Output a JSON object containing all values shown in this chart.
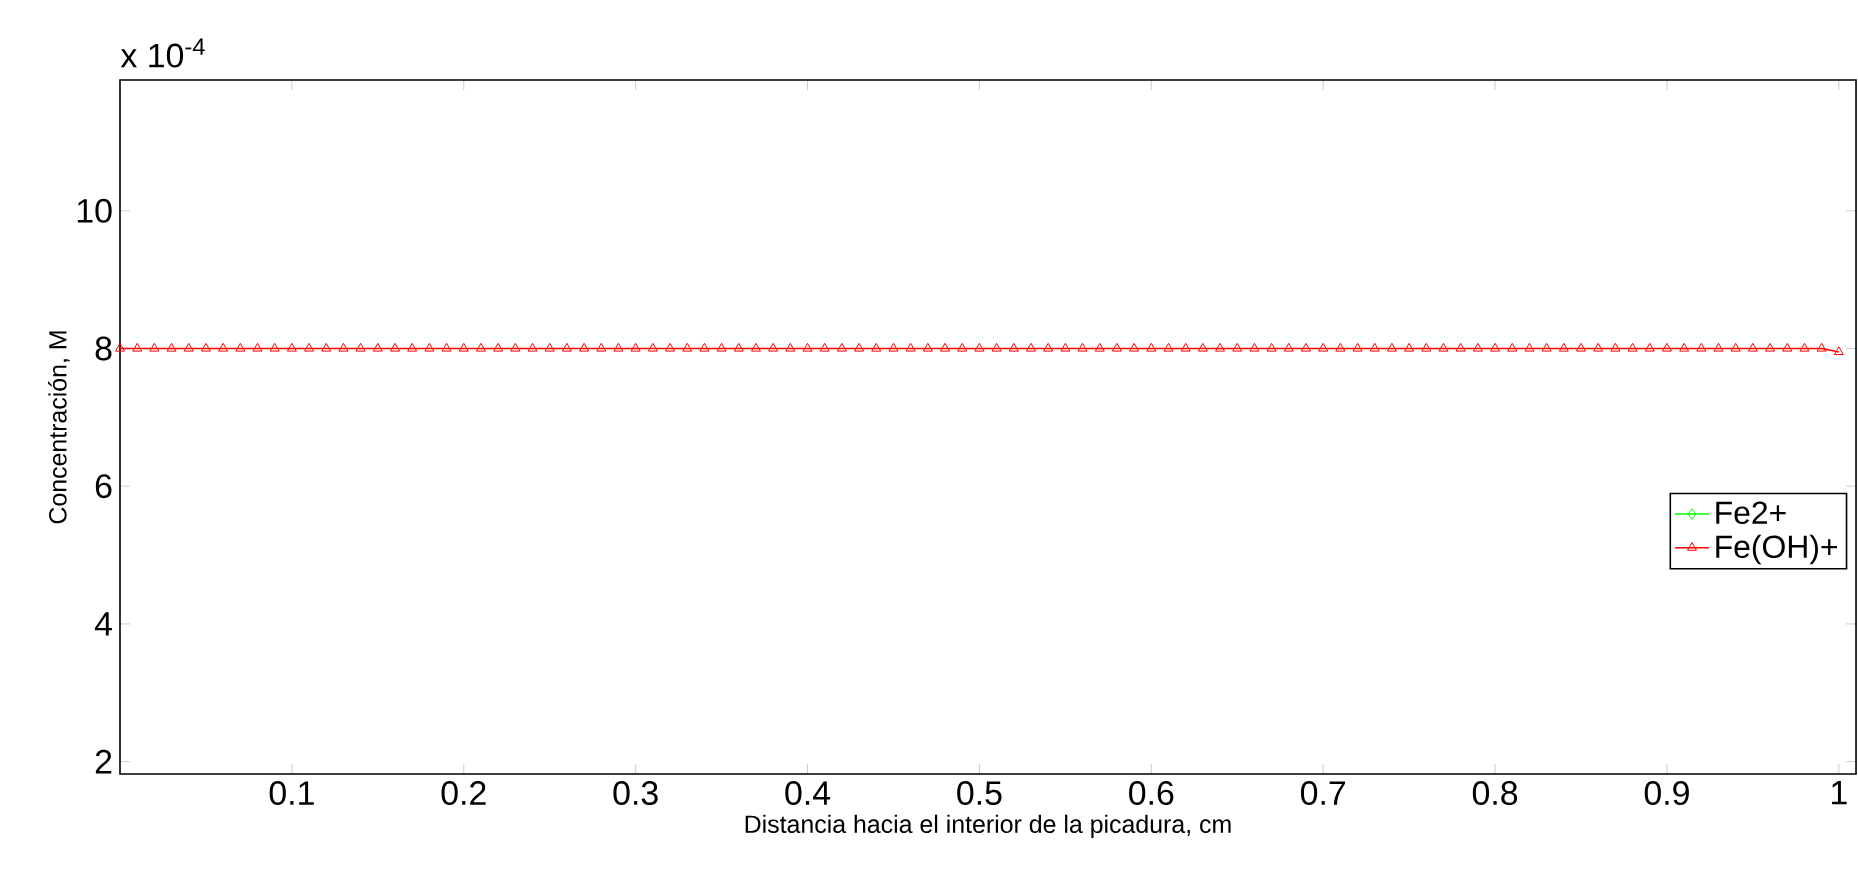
{
  "chart_data": {
    "type": "line",
    "xlabel": "Distancia hacia el interior de la picadura, cm",
    "ylabel": "Concentración, M",
    "annotations": [
      "x 10$^{-4}$"
    ],
    "xlim": [
      0,
      1.01
    ],
    "ylim": [
      1.82,
      11.9
    ],
    "xticks": [
      0.1,
      0.2,
      0.3,
      0.4,
      0.5,
      0.6,
      0.7,
      0.8,
      0.9,
      1
    ],
    "yticks": [
      2,
      4,
      6,
      8,
      10
    ],
    "legend": "right",
    "grid": false,
    "x": [
      0,
      0.01,
      0.02,
      0.03,
      0.04,
      0.05,
      0.06,
      0.07,
      0.08,
      0.09,
      0.1,
      0.11,
      0.12,
      0.13,
      0.14,
      0.15,
      0.16,
      0.17,
      0.18,
      0.19,
      0.2,
      0.21,
      0.22,
      0.23,
      0.24,
      0.25,
      0.26,
      0.27,
      0.28,
      0.29,
      0.3,
      0.31,
      0.32,
      0.33,
      0.34,
      0.35,
      0.36,
      0.37,
      0.38,
      0.39,
      0.4,
      0.41,
      0.42,
      0.43,
      0.44,
      0.45,
      0.46,
      0.47,
      0.48,
      0.49,
      0.5,
      0.51,
      0.52,
      0.53,
      0.54,
      0.55,
      0.56,
      0.57,
      0.58,
      0.59,
      0.6,
      0.61,
      0.62,
      0.63,
      0.64,
      0.65,
      0.66,
      0.67,
      0.68,
      0.69,
      0.7,
      0.71,
      0.72,
      0.73,
      0.74,
      0.75,
      0.76,
      0.77,
      0.78,
      0.79,
      0.8,
      0.81,
      0.82,
      0.83,
      0.84,
      0.85,
      0.86,
      0.87,
      0.88,
      0.89,
      0.9,
      0.91,
      0.92,
      0.93,
      0.94,
      0.95,
      0.96,
      0.97,
      0.98,
      0.99,
      1
    ],
    "series": [
      {
        "name": "Fe2+",
        "color": "#00ff00",
        "marker": "diamond",
        "values": [
          null,
          null,
          null,
          null,
          null,
          null,
          null,
          null,
          null,
          null,
          null,
          null,
          null,
          null,
          null,
          null,
          null,
          null,
          null,
          null,
          null,
          null,
          null,
          null,
          null,
          null,
          null,
          null,
          null,
          null,
          null,
          null,
          null,
          null,
          null,
          null,
          null,
          null,
          null,
          null,
          null,
          null,
          null,
          null,
          null,
          null,
          null,
          null,
          null,
          null,
          null,
          null,
          null,
          null,
          null,
          null,
          null,
          null,
          null,
          null,
          null,
          null,
          null,
          null,
          null,
          null,
          null,
          null,
          null,
          null,
          null,
          null,
          null,
          null,
          null,
          null,
          null,
          null,
          null,
          null,
          null,
          null,
          null,
          null,
          null,
          null,
          null,
          null,
          null,
          null,
          null,
          null,
          null,
          null,
          null,
          null,
          null,
          null,
          null,
          null,
          null
        ]
      },
      {
        "name": "Fe(OH)+",
        "color": "#ff0000",
        "marker": "triangle",
        "values": [
          8,
          8,
          8,
          8,
          8,
          8,
          8,
          8,
          8,
          8,
          8,
          8,
          8,
          8,
          8,
          8,
          8,
          8,
          8,
          8,
          8,
          8,
          8,
          8,
          8,
          8,
          8,
          8,
          8,
          8,
          8,
          8,
          8,
          8,
          8,
          8,
          8,
          8,
          8,
          8,
          8,
          8,
          8,
          8,
          8,
          8,
          8,
          8,
          8,
          8,
          8,
          8,
          8,
          8,
          8,
          8,
          8,
          8,
          8,
          8,
          8,
          8,
          8,
          8,
          8,
          8,
          8,
          8,
          8,
          8,
          8,
          8,
          8,
          8,
          8,
          8,
          8,
          8,
          8,
          8,
          8,
          8,
          8,
          8,
          8,
          8,
          8,
          8,
          8,
          8,
          8,
          8,
          8,
          8,
          8,
          8,
          8,
          8,
          8,
          8,
          7.95
        ]
      }
    ]
  }
}
